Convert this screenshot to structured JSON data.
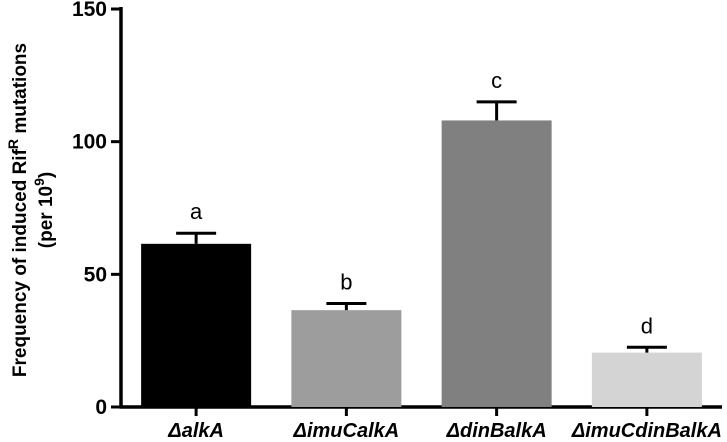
{
  "chart_data": {
    "type": "bar",
    "categories": [
      "ΔalkA",
      "ΔimuCalkA",
      "ΔdinBalkA",
      "ΔimuCdinBalkA"
    ],
    "values": [
      61.5,
      36.5,
      108,
      20.5
    ],
    "errors": [
      4,
      2.5,
      7,
      2
    ],
    "significance_labels": [
      "a",
      "b",
      "c",
      "d"
    ],
    "colors": [
      "#000000",
      "#9d9d9d",
      "#808080",
      "#d4d4d4"
    ],
    "ylabel_line1": "Frequency of induced Rif",
    "ylabel_line1_sup": "R",
    "ylabel_line1_tail": " mutations",
    "ylabel_line2": "(per 10",
    "ylabel_line2_sup": "9",
    "ylabel_line2_tail": ")",
    "ylim": [
      0,
      150
    ],
    "yticks": [
      0,
      50,
      100,
      150
    ],
    "grid": false
  }
}
